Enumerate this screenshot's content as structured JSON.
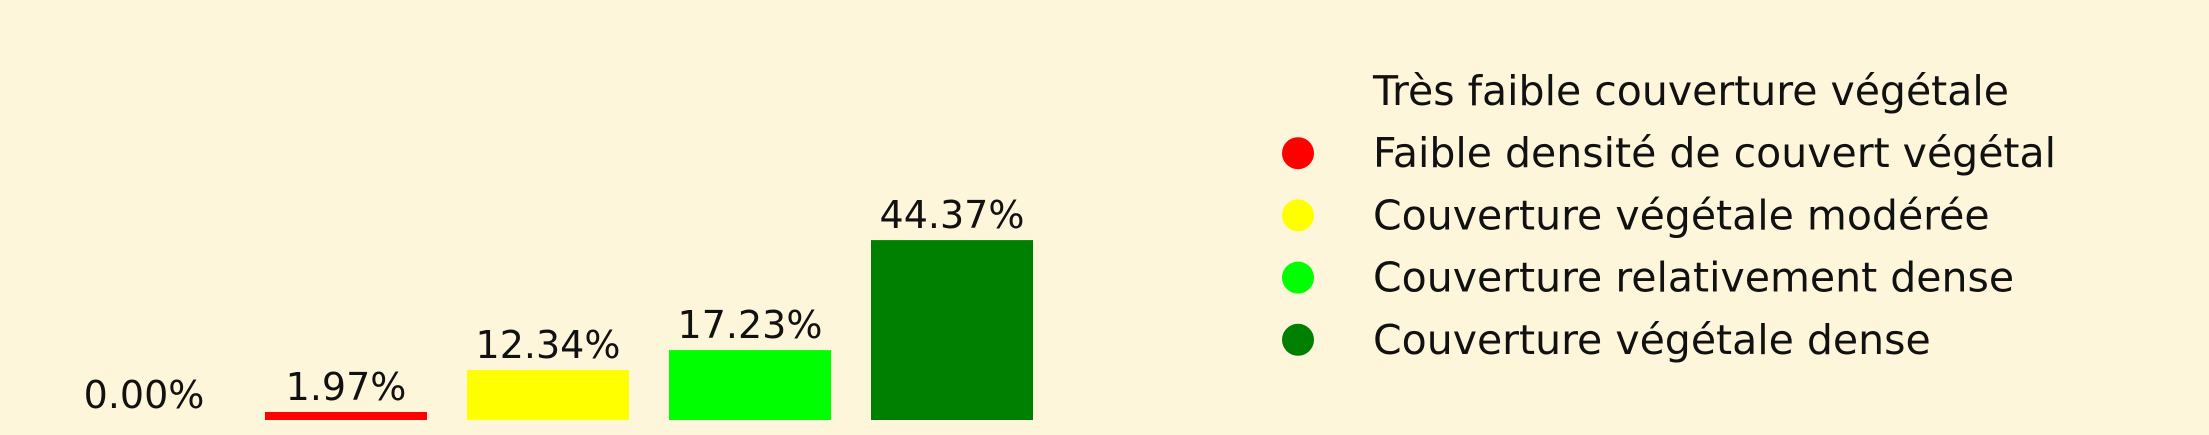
{
  "chart_data": {
    "type": "bar",
    "title": "",
    "xlabel": "",
    "ylabel": "",
    "ylim": [
      0,
      50
    ],
    "grid": false,
    "legend_placement": "right",
    "categories": [
      "Très faible couverture végétale",
      "Faible densité de couvert végétal",
      "Couverture végétale modérée",
      "Couverture relativement dense",
      "Couverture végétale dense"
    ],
    "values": [
      0.0,
      1.97,
      12.34,
      17.23,
      44.37
    ],
    "value_labels": [
      "0.00%",
      "1.97%",
      "12.34%",
      "17.23%",
      "44.37%"
    ],
    "colors": [
      "#fdf6db",
      "#ff0000",
      "#ffff00",
      "#00ff00",
      "#008000"
    ]
  }
}
